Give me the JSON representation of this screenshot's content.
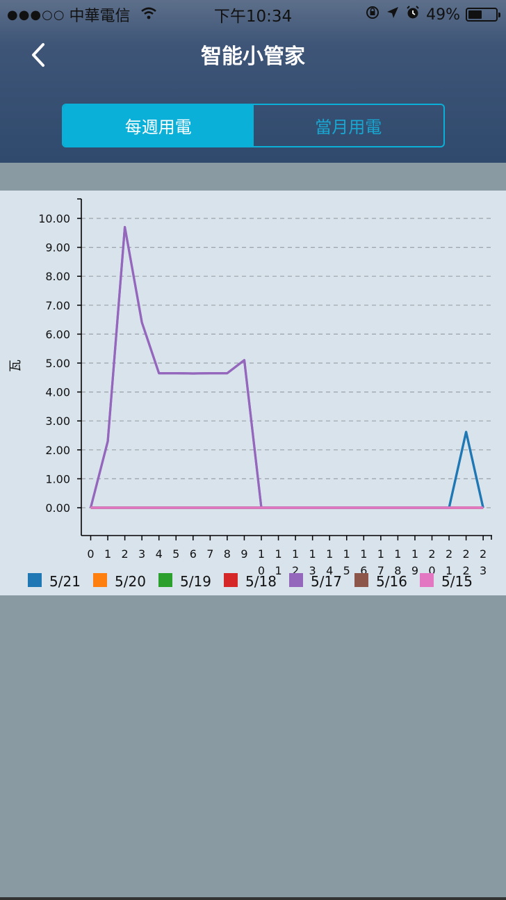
{
  "status_bar": {
    "signal": "●●●○○",
    "carrier": "中華電信",
    "time": "下午10:34",
    "battery_percent": "49%",
    "battery_level": 0.49
  },
  "nav": {
    "title": "智能小管家",
    "back_icon": "chevron-left-icon"
  },
  "tabs": [
    {
      "label": "每週用電",
      "active": true
    },
    {
      "label": "當月用電",
      "active": false
    }
  ],
  "colors": {
    "accent": "#0ab0d8",
    "panel_bg": "#d9e3ec",
    "page_bg": "#8a9aa2"
  },
  "chart_data": {
    "type": "line",
    "ylabel": "瓦",
    "xlabel": "",
    "ylim": [
      -1,
      10.5
    ],
    "yticks": [
      "0.00",
      "1.00",
      "2.00",
      "3.00",
      "4.00",
      "5.00",
      "6.00",
      "7.00",
      "8.00",
      "9.00",
      "10.00"
    ],
    "categories": [
      "0",
      "1",
      "2",
      "3",
      "4",
      "5",
      "6",
      "7",
      "8",
      "9",
      "10",
      "11",
      "12",
      "13",
      "14",
      "15",
      "16",
      "17",
      "18",
      "19",
      "20",
      "21",
      "22",
      "23"
    ],
    "grid": "horizontal dashed",
    "legend_position": "bottom",
    "series": [
      {
        "name": "5/21",
        "color": "#1f77b4",
        "values": [
          0,
          0,
          0,
          0,
          0,
          0,
          0,
          0,
          0,
          0,
          0,
          0,
          0,
          0,
          0,
          0,
          0,
          0,
          0,
          0,
          0,
          0,
          2.62,
          0
        ]
      },
      {
        "name": "5/20",
        "color": "#ff7f0e",
        "values": [
          0,
          0,
          0,
          0,
          0,
          0,
          0,
          0,
          0,
          0,
          0,
          0,
          0,
          0,
          0,
          0,
          0,
          0,
          0,
          0,
          0,
          0,
          0,
          0
        ]
      },
      {
        "name": "5/19",
        "color": "#2ca02c",
        "values": [
          0,
          0,
          0,
          0,
          0,
          0,
          0,
          0,
          0,
          0,
          0,
          0,
          0,
          0,
          0,
          0,
          0,
          0,
          0,
          0,
          0,
          0,
          0,
          0
        ]
      },
      {
        "name": "5/18",
        "color": "#d62728",
        "values": [
          0,
          0,
          0,
          0,
          0,
          0,
          0,
          0,
          0,
          0,
          0,
          0,
          0,
          0,
          0,
          0,
          0,
          0,
          0,
          0,
          0,
          0,
          0,
          0
        ]
      },
      {
        "name": "5/17",
        "color": "#9467bd",
        "values": [
          0,
          2.3,
          9.7,
          6.4,
          4.65,
          4.65,
          4.64,
          4.65,
          4.65,
          5.1,
          0,
          0,
          0,
          0,
          0,
          0,
          0,
          0,
          0,
          0,
          0,
          0,
          0,
          0
        ]
      },
      {
        "name": "5/16",
        "color": "#8c564b",
        "values": [
          0,
          0,
          0,
          0,
          0,
          0,
          0,
          0,
          0,
          0,
          0,
          0,
          0,
          0,
          0,
          0,
          0,
          0,
          0,
          0,
          0,
          0,
          0,
          0
        ]
      },
      {
        "name": "5/15",
        "color": "#e377c2",
        "values": [
          0,
          0,
          0,
          0,
          0,
          0,
          0,
          0,
          0,
          0,
          0,
          0,
          0,
          0,
          0,
          0,
          0,
          0,
          0,
          0,
          0,
          0,
          0,
          0
        ]
      }
    ]
  }
}
